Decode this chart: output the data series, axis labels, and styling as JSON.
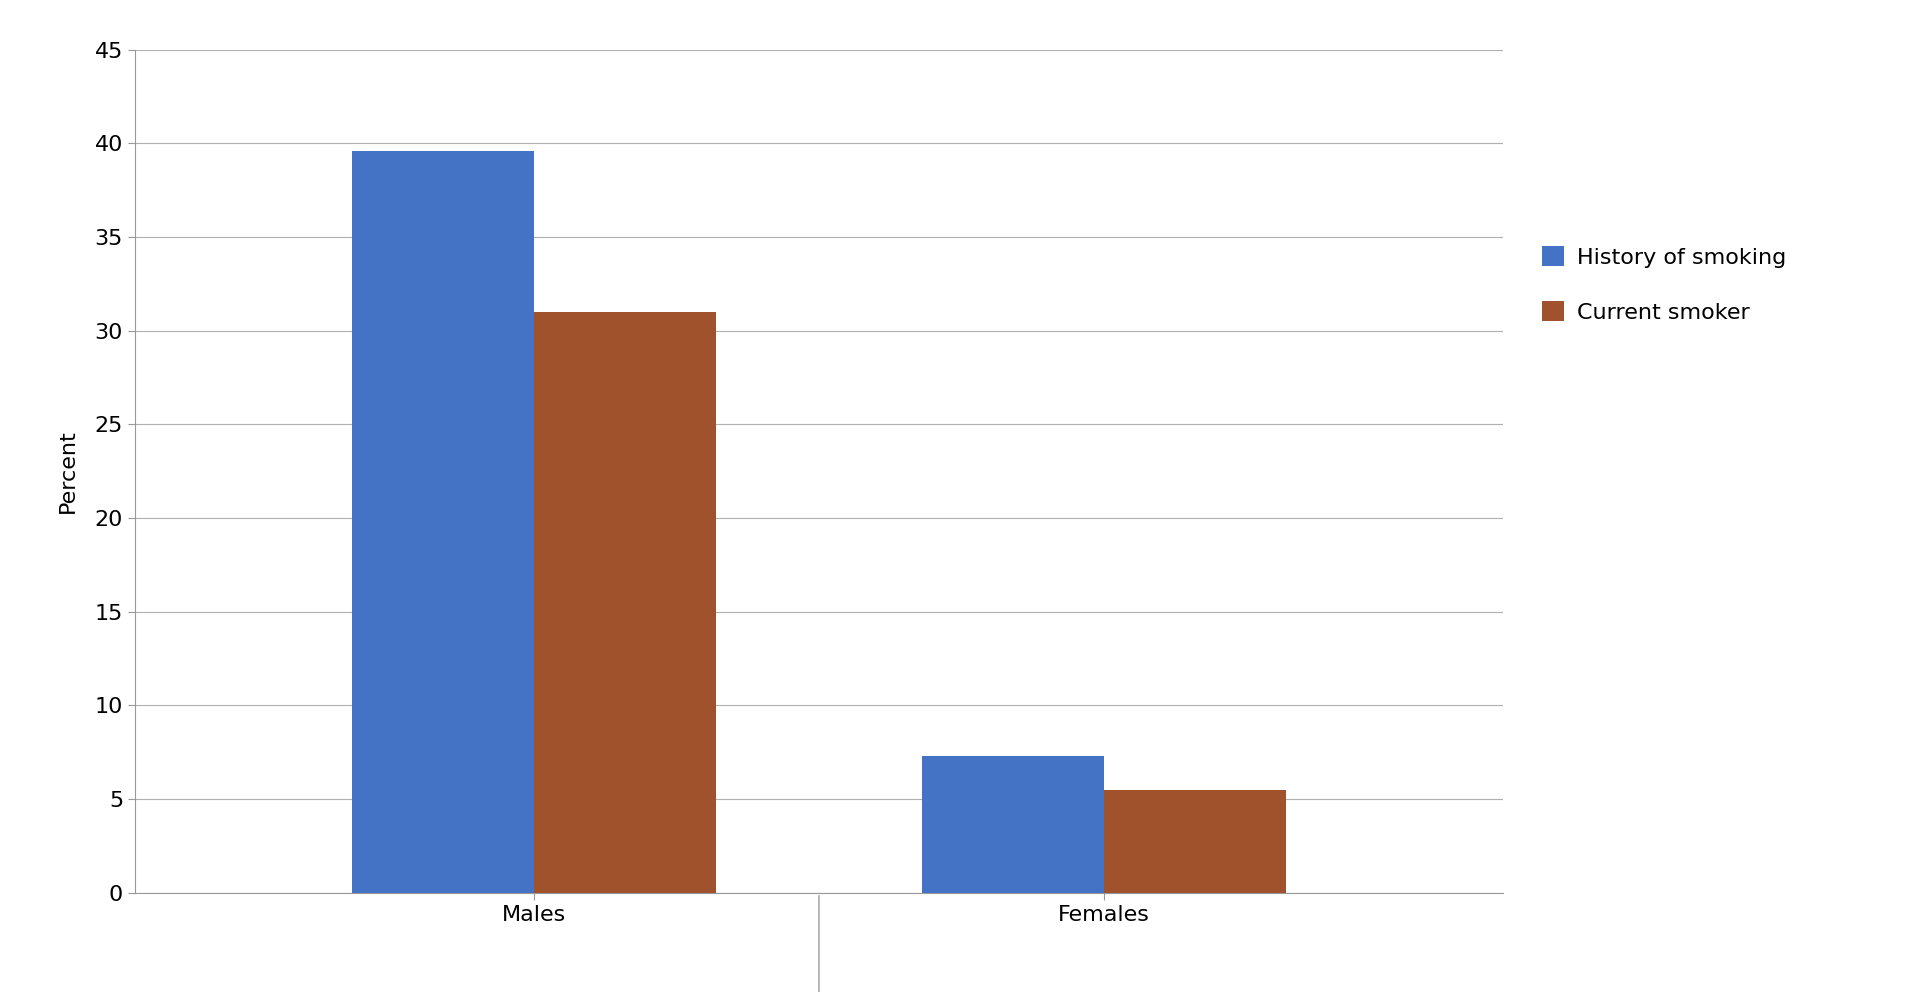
{
  "categories": [
    "Males",
    "Females"
  ],
  "series": [
    {
      "label": "History of smoking",
      "values": [
        39.6,
        7.3
      ],
      "color": "#4472C4"
    },
    {
      "label": "Current smoker",
      "values": [
        31.0,
        5.5
      ],
      "color": "#A0522D"
    }
  ],
  "ylabel": "Percent",
  "ylim": [
    0,
    45
  ],
  "yticks": [
    0,
    5,
    10,
    15,
    20,
    25,
    30,
    35,
    40,
    45
  ],
  "bar_width": 0.32,
  "background_color": "#ffffff",
  "grid_color": "#b0b0b0",
  "legend_fontsize": 16,
  "axis_label_fontsize": 16,
  "tick_fontsize": 16,
  "ylabel_fontsize": 16
}
